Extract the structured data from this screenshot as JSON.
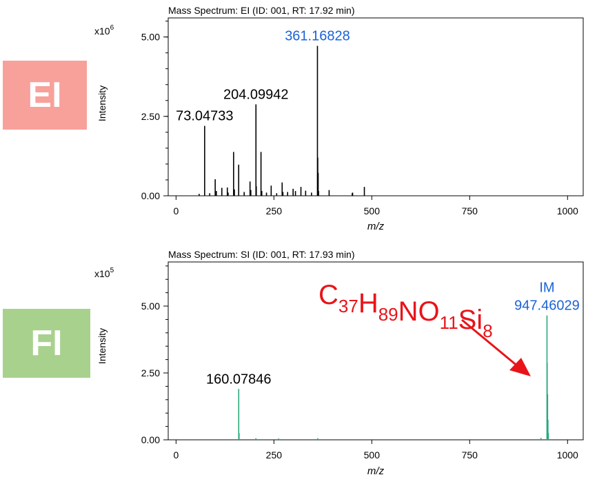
{
  "badges": {
    "top": {
      "label": "EI",
      "color": "#f8a09a"
    },
    "bottom": {
      "label": "FI",
      "color": "#a8d18e"
    }
  },
  "chart_data": [
    {
      "type": "bar",
      "title": "Mass Spectrum: EI (ID: 001, RT: 17.92 min)",
      "xlabel": "m/z",
      "ylabel": "Intensity",
      "multiplier_base": "x10",
      "multiplier_exp": "6",
      "xlim": [
        -20,
        1040
      ],
      "ylim": [
        0,
        5.6
      ],
      "xticks": [
        0,
        250,
        500,
        750,
        1000
      ],
      "yticks": [
        0.0,
        2.5,
        5.0
      ],
      "ytick_labels": [
        "0.00",
        "2.50",
        "5.00"
      ],
      "color": "#000000",
      "peaks": [
        {
          "mz": 59,
          "i": 0.06
        },
        {
          "mz": 73.04733,
          "i": 2.2
        },
        {
          "mz": 86,
          "i": 0.08
        },
        {
          "mz": 100,
          "i": 0.52
        },
        {
          "mz": 103,
          "i": 0.15
        },
        {
          "mz": 117,
          "i": 0.25
        },
        {
          "mz": 131,
          "i": 0.26
        },
        {
          "mz": 133,
          "i": 0.1
        },
        {
          "mz": 147,
          "i": 1.38
        },
        {
          "mz": 149,
          "i": 0.2
        },
        {
          "mz": 160,
          "i": 0.98
        },
        {
          "mz": 174,
          "i": 0.12
        },
        {
          "mz": 189,
          "i": 0.45
        },
        {
          "mz": 191,
          "i": 0.18
        },
        {
          "mz": 204.09942,
          "i": 2.88
        },
        {
          "mz": 205,
          "i": 0.3
        },
        {
          "mz": 217,
          "i": 1.38
        },
        {
          "mz": 219,
          "i": 0.15
        },
        {
          "mz": 231,
          "i": 0.1
        },
        {
          "mz": 243,
          "i": 0.32
        },
        {
          "mz": 257,
          "i": 0.08
        },
        {
          "mz": 271,
          "i": 0.42
        },
        {
          "mz": 273,
          "i": 0.12
        },
        {
          "mz": 285,
          "i": 0.12
        },
        {
          "mz": 299,
          "i": 0.22
        },
        {
          "mz": 305,
          "i": 0.15
        },
        {
          "mz": 319,
          "i": 0.28
        },
        {
          "mz": 331,
          "i": 0.16
        },
        {
          "mz": 346,
          "i": 0.1
        },
        {
          "mz": 361.16828,
          "i": 4.72
        },
        {
          "mz": 362,
          "i": 1.2
        },
        {
          "mz": 363,
          "i": 0.72
        },
        {
          "mz": 364,
          "i": 0.15
        },
        {
          "mz": 391,
          "i": 0.18
        },
        {
          "mz": 450,
          "i": 0.08
        },
        {
          "mz": 451,
          "i": 0.1
        },
        {
          "mz": 481,
          "i": 0.28
        }
      ],
      "annotations": [
        {
          "mz": 73.04733,
          "i": 2.2,
          "label": "73.04733",
          "color": "#000000"
        },
        {
          "mz": 204.09942,
          "i": 2.88,
          "label": "204.09942",
          "color": "#000000"
        },
        {
          "mz": 361.16828,
          "i": 4.72,
          "label": "361.16828",
          "color": "#1a62d6"
        }
      ]
    },
    {
      "type": "bar",
      "title": "Mass Spectrum: SI (ID: 001, RT: 17.93 min)",
      "xlabel": "m/z",
      "ylabel": "Intensity",
      "multiplier_base": "x10",
      "multiplier_exp": "5",
      "xlim": [
        -20,
        1040
      ],
      "ylim": [
        0,
        6.65
      ],
      "xticks": [
        0,
        250,
        500,
        750,
        1000
      ],
      "yticks": [
        0.0,
        2.5,
        5.0
      ],
      "ytick_labels": [
        "0.00",
        "2.50",
        "5.00"
      ],
      "color": "#2aa97a",
      "peaks": [
        {
          "mz": 160.07846,
          "i": 1.9
        },
        {
          "mz": 161,
          "i": 0.25
        },
        {
          "mz": 204,
          "i": 0.06
        },
        {
          "mz": 262,
          "i": 0.05
        },
        {
          "mz": 362,
          "i": 0.06
        },
        {
          "mz": 932,
          "i": 0.07
        },
        {
          "mz": 947.46029,
          "i": 4.65
        },
        {
          "mz": 948,
          "i": 2.88
        },
        {
          "mz": 949,
          "i": 1.7
        },
        {
          "mz": 950,
          "i": 0.75
        },
        {
          "mz": 951,
          "i": 0.25
        }
      ],
      "annotations": [
        {
          "mz": 160.07846,
          "i": 1.9,
          "label": "160.07846",
          "color": "#000000"
        },
        {
          "mz": 947.46029,
          "i": 4.65,
          "label": "947.46029",
          "label_top": "IM",
          "color": "#1a62d6"
        }
      ],
      "formula": {
        "parts": [
          {
            "text": "C",
            "sub": "37"
          },
          {
            "text": "H",
            "sub": "89"
          },
          {
            "text": "NO",
            "sub": "11"
          },
          {
            "text": "Si",
            "sub": "8"
          }
        ],
        "color": "#e8141a"
      }
    }
  ]
}
